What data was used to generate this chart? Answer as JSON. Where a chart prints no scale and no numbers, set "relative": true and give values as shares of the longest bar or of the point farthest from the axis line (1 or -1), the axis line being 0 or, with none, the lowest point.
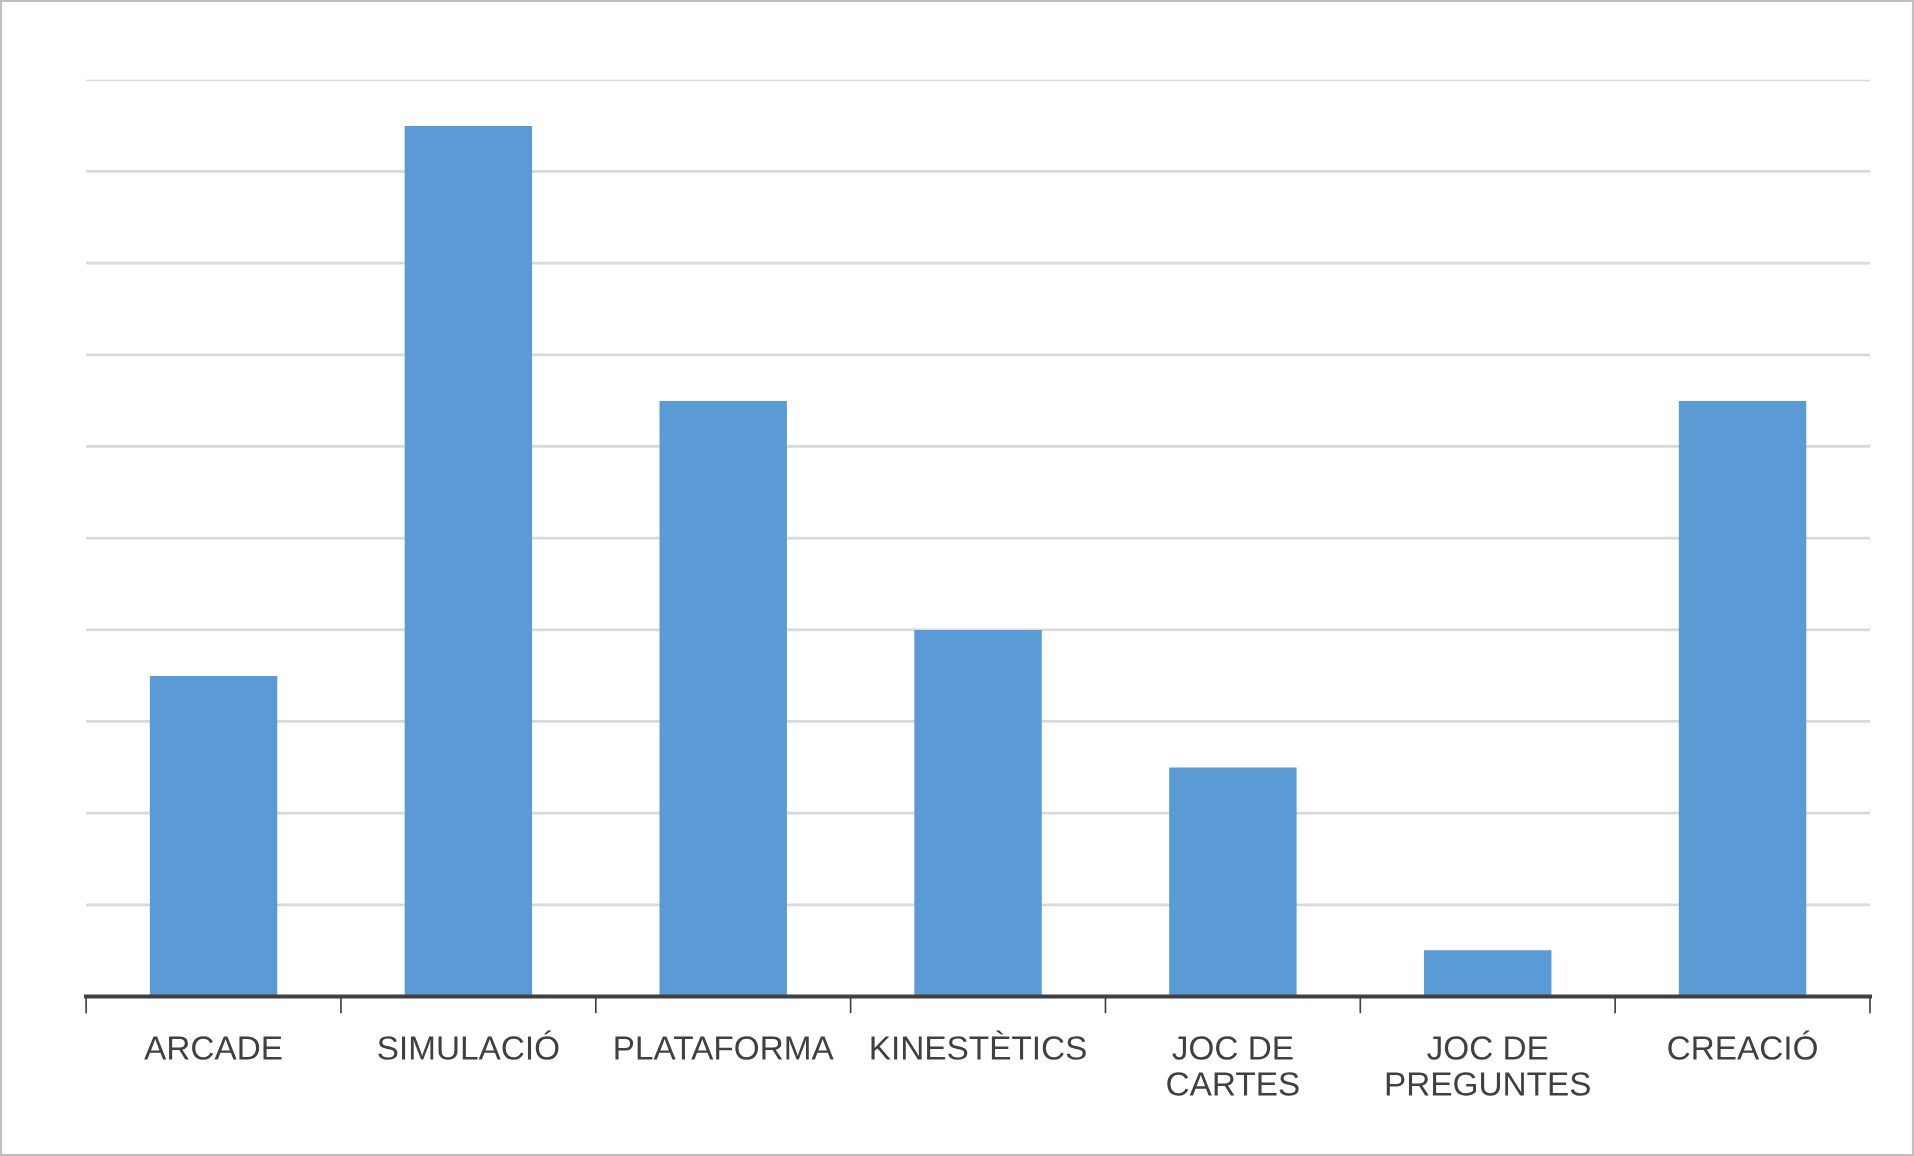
{
  "chart_data": {
    "type": "bar",
    "relative": true,
    "categories": [
      "ARCADE",
      "SIMULACIÓ",
      "PLATAFORMA",
      "KINESTÈTICS",
      "JOC DE CARTES",
      "JOC DE PREGUNTES",
      "CREACIÓ"
    ],
    "values": [
      0.368,
      1,
      0.684,
      0.421,
      0.263,
      0.053,
      0.684
    ],
    "color": "#5b9bd5",
    "grid": "y"
  }
}
